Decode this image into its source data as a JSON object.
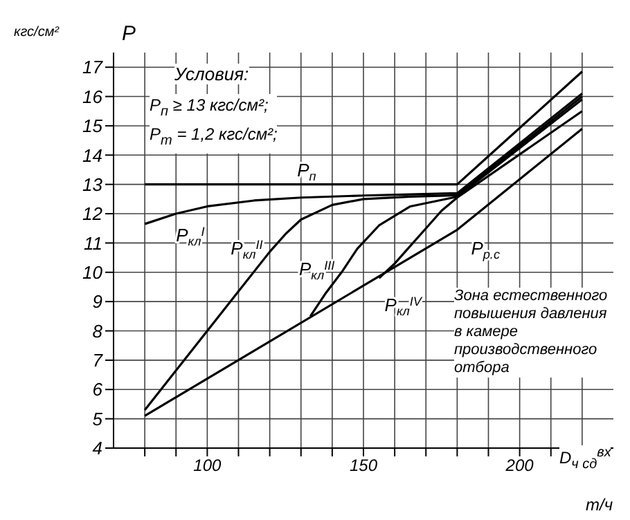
{
  "chart_data": {
    "type": "line",
    "xlabel": "т/ч",
    "ylabel": "P",
    "annotations": [
      "кгс/см²",
      "Условия:",
      "P$_{п}$ ≥ 13 кгс/см²;",
      "P$_{т}$ = 1,2 кгс/см²;",
      "Зона естественного повышения давления в камере производственного отбора",
      "D$_{ч сд}$$^{вх}$"
    ],
    "series": [
      {
        "name": "P$_{п}$",
        "color": "#000000",
        "x": [
          80,
          180,
          220
        ],
        "values": [
          13,
          13,
          16.85
        ]
      },
      {
        "name": "P$_{кл}$$^{I}$",
        "color": "#000000",
        "x": [
          80,
          90,
          100,
          115,
          130,
          150,
          165,
          180,
          220
        ],
        "values": [
          11.65,
          12.0,
          12.25,
          12.45,
          12.55,
          12.62,
          12.66,
          12.7,
          16.1
        ]
      },
      {
        "name": "P$_{кл}$$^{II}$",
        "color": "#000000",
        "x": [
          80,
          90,
          100,
          110,
          120,
          125,
          130,
          140,
          150,
          165,
          180,
          220
        ],
        "values": [
          5.3,
          6.65,
          8.0,
          9.35,
          10.7,
          11.3,
          11.8,
          12.3,
          12.5,
          12.58,
          12.63,
          16.0
        ]
      },
      {
        "name": "P$_{кл}$$^{III}$",
        "color": "#000000",
        "x": [
          133,
          138,
          143,
          148,
          155,
          165,
          180,
          220
        ],
        "values": [
          8.5,
          9.3,
          10.0,
          10.8,
          11.6,
          12.25,
          12.58,
          15.9
        ]
      },
      {
        "name": "P$_{кл}$$^{IV}$",
        "color": "#000000",
        "x": [
          155,
          160,
          165,
          170,
          175,
          180,
          220
        ],
        "values": [
          9.8,
          10.3,
          10.9,
          11.5,
          12.1,
          12.55,
          15.5
        ]
      },
      {
        "name": "P$_{р.с}$",
        "color": "#000000",
        "x": [
          80,
          180,
          220
        ],
        "values": [
          5.1,
          11.45,
          14.9
        ]
      }
    ],
    "xlim": [
      70,
      230
    ],
    "xticks": [
      {
        "value": 80,
        "label": null
      },
      {
        "value": 90,
        "label": null
      },
      100,
      {
        "value": 110,
        "label": null
      },
      {
        "value": 120,
        "label": null
      },
      {
        "value": 130,
        "label": null
      },
      {
        "value": 140,
        "label": null
      },
      150,
      {
        "value": 160,
        "label": null
      },
      {
        "value": 170,
        "label": null
      },
      {
        "value": 180,
        "label": null
      },
      {
        "value": 190,
        "label": null
      },
      200,
      {
        "value": 210,
        "label": null
      },
      {
        "value": 220,
        "label": null
      }
    ],
    "ylim": [
      4,
      17.5
    ],
    "yticks": [
      4,
      5,
      6,
      7,
      8,
      9,
      10,
      11,
      12,
      13,
      14,
      15,
      16,
      17
    ],
    "grid": true,
    "marker": "none",
    "line_style": "solid"
  }
}
